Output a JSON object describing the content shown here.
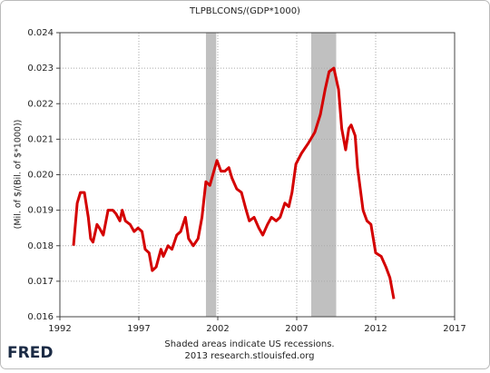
{
  "chart_data": {
    "type": "line",
    "title": "TLPBLCONS/(GDP*1000)",
    "y_label": "(Mil. of $/(Bil. of $*1000))",
    "footer": [
      "Shaded areas indicate US recessions.",
      "2013 research.stlouisfed.org"
    ],
    "logo": "FRED",
    "color": "#d40000",
    "recession_color": "#c0c0c0",
    "recessions": [
      [
        2001.25,
        2001.9
      ],
      [
        2007.92,
        2009.5
      ]
    ],
    "x": [
      1992.86,
      1993.1,
      1993.3,
      1993.55,
      1993.8,
      1993.95,
      1994.1,
      1994.35,
      1994.5,
      1994.75,
      1995.05,
      1995.35,
      1995.55,
      1995.8,
      1995.95,
      1996.15,
      1996.45,
      1996.7,
      1996.95,
      1997.2,
      1997.4,
      1997.65,
      1997.85,
      1998.1,
      1998.4,
      1998.55,
      1998.85,
      1999.1,
      1999.4,
      1999.65,
      1999.95,
      2000.15,
      2000.45,
      2000.75,
      2001.0,
      2001.25,
      2001.5,
      2001.75,
      2001.95,
      2002.2,
      2002.45,
      2002.7,
      2002.9,
      2003.2,
      2003.5,
      2003.8,
      2004.0,
      2004.3,
      2004.6,
      2004.85,
      2005.15,
      2005.4,
      2005.7,
      2005.95,
      2006.25,
      2006.5,
      2006.7,
      2006.95,
      2007.3,
      2007.75,
      2008.15,
      2008.5,
      2008.8,
      2009.05,
      2009.35,
      2009.65,
      2009.85,
      2010.1,
      2010.3,
      2010.45,
      2010.7,
      2010.85,
      2011.2,
      2011.45,
      2011.7,
      2012.0,
      2012.35,
      2012.65,
      2012.9,
      2013.15
    ],
    "values": [
      0.018,
      0.0192,
      0.0195,
      0.0195,
      0.0188,
      0.0182,
      0.0181,
      0.0186,
      0.0185,
      0.0183,
      0.019,
      0.019,
      0.0189,
      0.0187,
      0.019,
      0.0187,
      0.0186,
      0.0184,
      0.0185,
      0.0184,
      0.0179,
      0.0178,
      0.0173,
      0.0174,
      0.0179,
      0.0177,
      0.018,
      0.0179,
      0.0183,
      0.0184,
      0.0188,
      0.0182,
      0.018,
      0.0182,
      0.0188,
      0.0198,
      0.0197,
      0.0201,
      0.0204,
      0.0201,
      0.0201,
      0.0202,
      0.0199,
      0.0196,
      0.0195,
      0.019,
      0.0187,
      0.0188,
      0.0185,
      0.0183,
      0.0186,
      0.0188,
      0.0187,
      0.0188,
      0.0192,
      0.0191,
      0.0195,
      0.0203,
      0.0206,
      0.0209,
      0.0212,
      0.0217,
      0.0224,
      0.0229,
      0.023,
      0.0224,
      0.0213,
      0.0207,
      0.0213,
      0.0214,
      0.0211,
      0.0202,
      0.019,
      0.0187,
      0.0186,
      0.0178,
      0.0177,
      0.0174,
      0.0171,
      0.0165
    ],
    "xlim": [
      1992,
      2017
    ],
    "xticks": [
      1992,
      1997,
      2002,
      2007,
      2012,
      2017
    ],
    "ylim": [
      0.016,
      0.024
    ],
    "yticks": [
      0.016,
      0.017,
      0.018,
      0.019,
      {
        "value": 0.02,
        "label": "0.020"
      },
      0.021,
      0.022,
      0.023,
      0.024
    ],
    "grid": true
  }
}
